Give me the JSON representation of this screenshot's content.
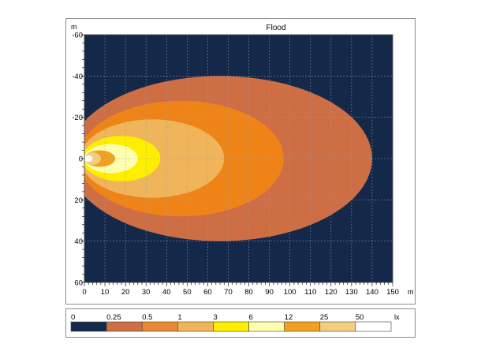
{
  "chart_data": {
    "type": "heatmap",
    "title": "Flood",
    "xlabel": "m",
    "ylabel": "m",
    "xlim": [
      0,
      150
    ],
    "ylim": [
      -60,
      60
    ],
    "y_inverted": true,
    "grid": true,
    "x_ticks": [
      0,
      10,
      20,
      30,
      40,
      50,
      60,
      70,
      80,
      90,
      100,
      110,
      120,
      130,
      140,
      150
    ],
    "y_ticks": [
      -60,
      -40,
      -20,
      0,
      20,
      40,
      60
    ],
    "background_color": "#14284a",
    "isolux_zones": [
      {
        "lux": 0.25,
        "x_start": -8,
        "x_end": 140,
        "half_width": 40,
        "color": "#cd6e45"
      },
      {
        "lux": 0.5,
        "x_start": -3,
        "x_end": 97,
        "half_width": 28,
        "color": "#ee8418"
      },
      {
        "lux": 1,
        "x_start": -2,
        "x_end": 68,
        "half_width": 19,
        "color": "#f0b45a"
      },
      {
        "lux": 3,
        "x_start": -1,
        "x_end": 37,
        "half_width": 11,
        "color": "#ffee00"
      },
      {
        "lux": 6,
        "x_start": 0,
        "x_end": 26,
        "half_width": 7,
        "color": "#ffffb0"
      },
      {
        "lux": 12,
        "x_start": 0,
        "x_end": 15,
        "half_width": 4,
        "color": "#f2a11e"
      },
      {
        "lux": 25,
        "x_start": 0,
        "x_end": 8,
        "half_width": 3,
        "color": "#f5cd80"
      },
      {
        "lux": 50,
        "x_start": 0,
        "x_end": 4,
        "half_width": 1.6,
        "color": "#ffffff"
      }
    ],
    "legend": {
      "unit": "lx",
      "labels": [
        "0",
        "0.25",
        "0.5",
        "1",
        "3",
        "6",
        "12",
        "25",
        "50"
      ],
      "colors": [
        "#14284a",
        "#cd6e45",
        "#e88a35",
        "#f0b45a",
        "#ffee00",
        "#ffffb0",
        "#f2a11e",
        "#f5cd80",
        "#ffffff"
      ]
    }
  }
}
